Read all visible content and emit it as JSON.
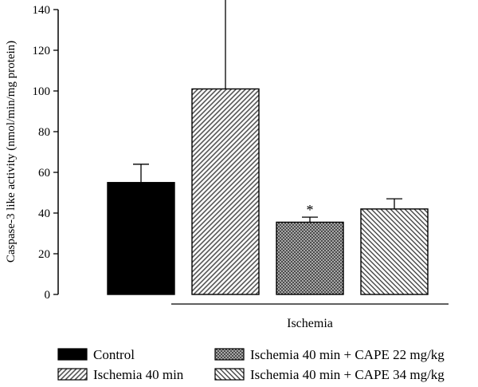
{
  "chart_data": {
    "type": "bar",
    "title": "",
    "xlabel": "",
    "ylabel": "Caspase-3 like activity (nmol/min/mg protein)",
    "ylim": [
      0,
      140
    ],
    "yticks": [
      0,
      20,
      40,
      60,
      80,
      100,
      120,
      140
    ],
    "grid": false,
    "legend_position": "bottom",
    "categories": [
      "Control",
      "Ischemia 40 min",
      "Ischemia 40 min + CAPE 22 mg/kg",
      "Ischemia 40 min + CAPE 34 mg/kg"
    ],
    "values": [
      55,
      101,
      35.5,
      42
    ],
    "error_upper": [
      64,
      145,
      38,
      47
    ],
    "annotations": [
      "",
      "",
      "*",
      ""
    ],
    "patterns": [
      "solid-black",
      "diagonal-hatch",
      "crosshatch-dense",
      "back-diagonal-hatch"
    ],
    "group_bracket": {
      "label": "Ischemia",
      "from_category": 1,
      "to_category": 3
    },
    "legend": [
      {
        "label": "Control",
        "pattern": "solid-black"
      },
      {
        "label": "Ischemia 40 min + CAPE 22 mg/kg",
        "pattern": "crosshatch-dense"
      },
      {
        "label": "Ischemia 40 min",
        "pattern": "diagonal-hatch"
      },
      {
        "label": "Ischemia 40 min + CAPE 34 mg/kg",
        "pattern": "back-diagonal-hatch"
      }
    ]
  }
}
